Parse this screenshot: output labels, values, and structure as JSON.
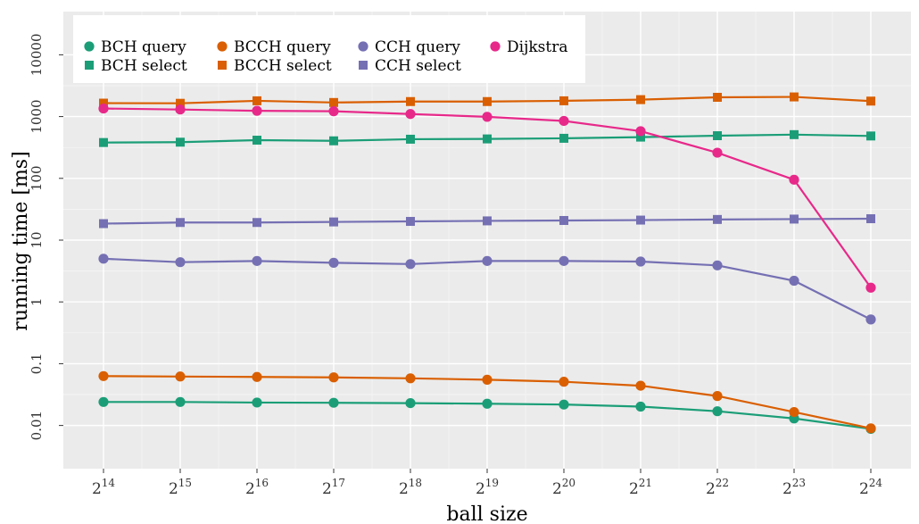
{
  "chart_data": {
    "type": "line",
    "xlabel": "ball size",
    "ylabel": "running time [ms]",
    "x_tick_base": "2",
    "x": [
      14,
      15,
      16,
      17,
      18,
      19,
      20,
      21,
      22,
      23,
      24
    ],
    "y_scale": "log",
    "ylim": [
      0.002,
      50000
    ],
    "y_ticks": [
      {
        "value": 0.01,
        "label": "0.01"
      },
      {
        "value": 0.1,
        "label": "0.1"
      },
      {
        "value": 1,
        "label": "1"
      },
      {
        "value": 10,
        "label": "10"
      },
      {
        "value": 100,
        "label": "100"
      },
      {
        "value": 1000,
        "label": "1000"
      },
      {
        "value": 10000,
        "label": "10000"
      }
    ],
    "grid": true,
    "legend_position": "top-left",
    "series": [
      {
        "name": "BCH query",
        "color": "#1b9e77",
        "marker": "circle",
        "values": [
          0.024,
          0.024,
          0.0235,
          0.0233,
          0.023,
          0.0225,
          0.0218,
          0.0202,
          0.017,
          0.013,
          0.0088
        ]
      },
      {
        "name": "BCH select",
        "color": "#1b9e77",
        "marker": "square",
        "values": [
          380,
          385,
          415,
          405,
          430,
          435,
          445,
          465,
          490,
          510,
          485
        ]
      },
      {
        "name": "BCCH query",
        "color": "#d95f02",
        "marker": "circle",
        "values": [
          0.063,
          0.062,
          0.061,
          0.06,
          0.058,
          0.055,
          0.051,
          0.044,
          0.03,
          0.0165,
          0.009
        ]
      },
      {
        "name": "BCCH select",
        "color": "#d95f02",
        "marker": "square",
        "values": [
          1650,
          1640,
          1800,
          1690,
          1750,
          1750,
          1800,
          1880,
          2050,
          2080,
          1780
        ]
      },
      {
        "name": "CCH query",
        "color": "#7570b3",
        "marker": "circle",
        "values": [
          5.0,
          4.4,
          4.6,
          4.3,
          4.1,
          4.6,
          4.6,
          4.5,
          3.9,
          2.2,
          0.52
        ]
      },
      {
        "name": "CCH select",
        "color": "#7570b3",
        "marker": "square",
        "values": [
          18.5,
          19.3,
          19.3,
          19.7,
          20.1,
          20.5,
          20.8,
          21.1,
          21.6,
          21.9,
          22.2
        ]
      },
      {
        "name": "Dijkstra",
        "color": "#e7298a",
        "marker": "circle",
        "values": [
          1350,
          1300,
          1240,
          1220,
          1100,
          990,
          850,
          580,
          260,
          95,
          1.7
        ]
      }
    ]
  }
}
